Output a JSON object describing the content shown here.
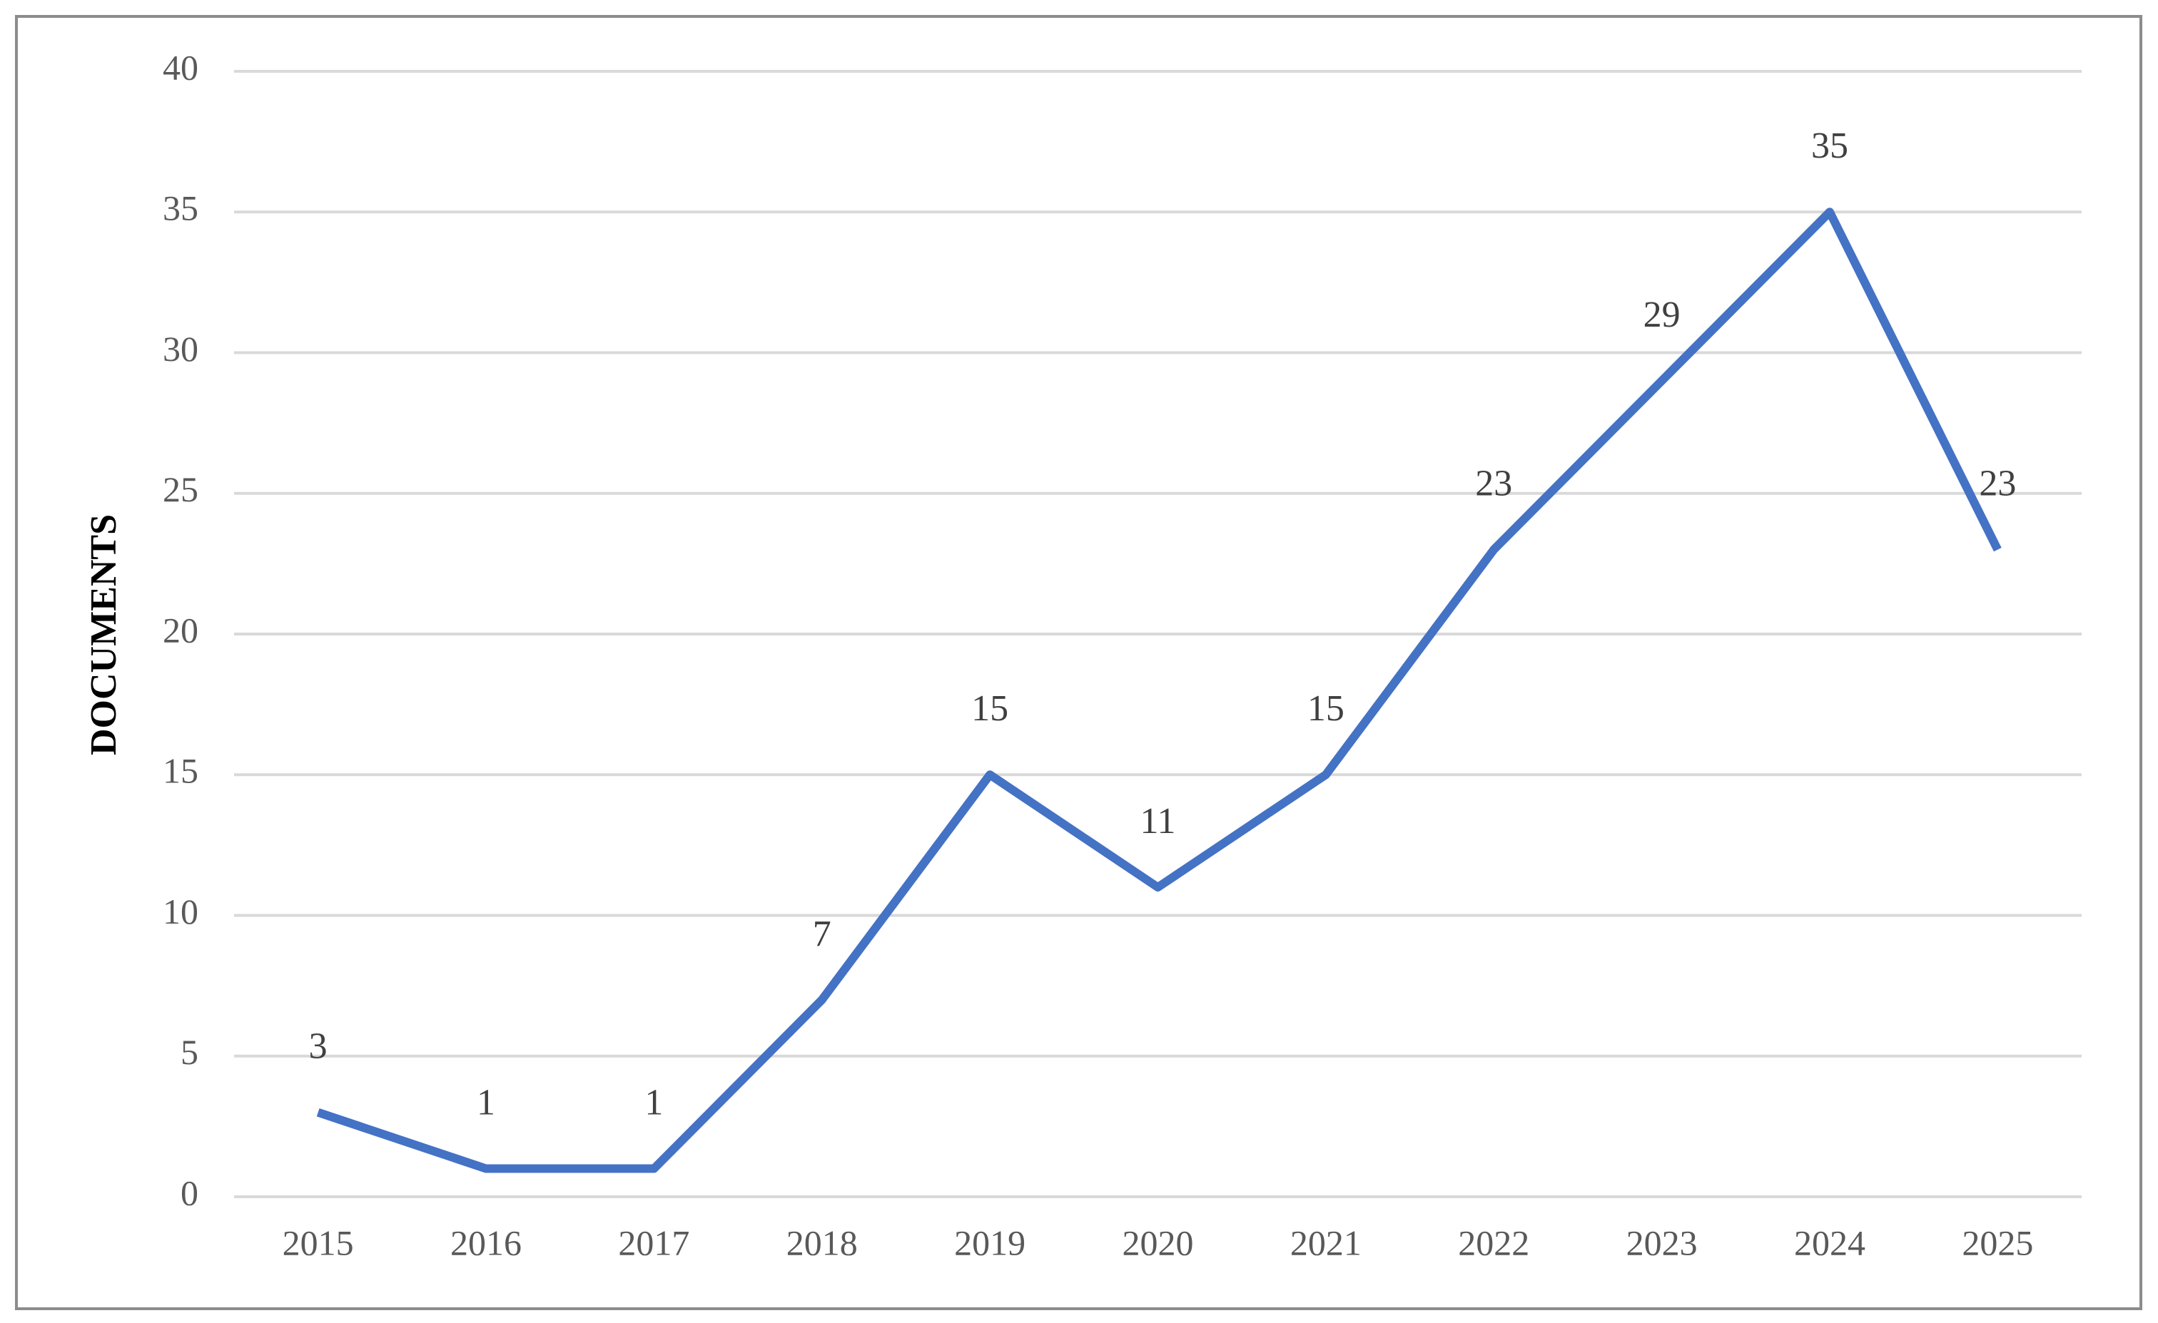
{
  "chart_data": {
    "type": "line",
    "y_label": "DOCUMENTS",
    "categories": [
      "2015",
      "2016",
      "2017",
      "2018",
      "2019",
      "2020",
      "2021",
      "2022",
      "2023",
      "2024",
      "2025"
    ],
    "values": [
      3,
      1,
      1,
      7,
      15,
      11,
      15,
      23,
      29,
      35,
      23
    ],
    "color": "#4472c4",
    "ylim": [
      0,
      40
    ],
    "yticks": [
      0,
      5,
      10,
      15,
      20,
      25,
      30,
      35,
      40
    ],
    "grid": true
  }
}
